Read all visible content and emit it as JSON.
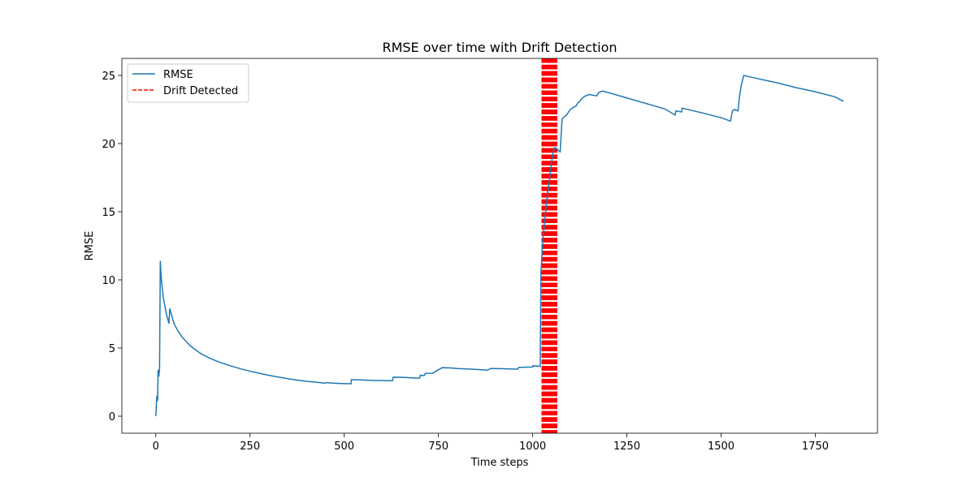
{
  "chart_data": {
    "type": "line",
    "title": "RMSE over time with Drift Detection",
    "xlabel": "Time steps",
    "ylabel": "RMSE",
    "xlim": [
      -90,
      1915
    ],
    "ylim": [
      -1.25,
      26.25
    ],
    "xticks": [
      0,
      250,
      500,
      750,
      1000,
      1250,
      1500,
      1750
    ],
    "yticks": [
      0,
      5,
      10,
      15,
      20,
      25
    ],
    "grid": false,
    "legend_position": "upper-left",
    "legend": [
      {
        "label": "RMSE",
        "color": "#1f77b4",
        "style": "solid"
      },
      {
        "label": "Drift Detected",
        "color": "#ff0000",
        "style": "dashed"
      }
    ],
    "series": [
      {
        "name": "RMSE",
        "color": "#1f77b4",
        "points": [
          [
            0,
            0.0
          ],
          [
            1,
            0.4
          ],
          [
            2,
            1.2
          ],
          [
            3,
            1.5
          ],
          [
            4,
            1.1
          ],
          [
            5,
            1.3
          ],
          [
            6,
            3.4
          ],
          [
            7,
            3.1
          ],
          [
            8,
            2.9
          ],
          [
            9,
            3.2
          ],
          [
            10,
            3.5
          ],
          [
            12,
            11.4
          ],
          [
            14,
            10.3
          ],
          [
            17,
            9.4
          ],
          [
            20,
            8.7
          ],
          [
            24,
            8.1
          ],
          [
            28,
            7.5
          ],
          [
            32,
            7.1
          ],
          [
            35,
            6.8
          ],
          [
            37,
            7.9
          ],
          [
            40,
            7.6
          ],
          [
            45,
            7.1
          ],
          [
            50,
            6.7
          ],
          [
            60,
            6.2
          ],
          [
            70,
            5.8
          ],
          [
            80,
            5.5
          ],
          [
            90,
            5.2
          ],
          [
            100,
            4.98
          ],
          [
            120,
            4.58
          ],
          [
            140,
            4.3
          ],
          [
            160,
            4.06
          ],
          [
            180,
            3.86
          ],
          [
            200,
            3.68
          ],
          [
            225,
            3.48
          ],
          [
            250,
            3.3
          ],
          [
            275,
            3.15
          ],
          [
            300,
            3.0
          ],
          [
            325,
            2.87
          ],
          [
            350,
            2.75
          ],
          [
            375,
            2.65
          ],
          [
            400,
            2.56
          ],
          [
            425,
            2.49
          ],
          [
            450,
            2.42
          ],
          [
            455,
            2.47
          ],
          [
            460,
            2.44
          ],
          [
            480,
            2.41
          ],
          [
            500,
            2.39
          ],
          [
            518,
            2.38
          ],
          [
            519,
            2.68
          ],
          [
            540,
            2.66
          ],
          [
            560,
            2.64
          ],
          [
            580,
            2.62
          ],
          [
            600,
            2.61
          ],
          [
            628,
            2.6
          ],
          [
            630,
            2.86
          ],
          [
            660,
            2.84
          ],
          [
            690,
            2.8
          ],
          [
            700,
            2.79
          ],
          [
            702,
            3.0
          ],
          [
            712,
            2.98
          ],
          [
            715,
            3.14
          ],
          [
            735,
            3.15
          ],
          [
            745,
            3.33
          ],
          [
            760,
            3.56
          ],
          [
            780,
            3.54
          ],
          [
            800,
            3.5
          ],
          [
            830,
            3.46
          ],
          [
            850,
            3.43
          ],
          [
            870,
            3.4
          ],
          [
            880,
            3.37
          ],
          [
            888,
            3.5
          ],
          [
            910,
            3.49
          ],
          [
            940,
            3.47
          ],
          [
            960,
            3.45
          ],
          [
            963,
            3.58
          ],
          [
            990,
            3.6
          ],
          [
            1000,
            3.6
          ],
          [
            1001,
            3.7
          ],
          [
            1020,
            3.65
          ],
          [
            1022,
            10.5
          ],
          [
            1026,
            12.5
          ],
          [
            1030,
            13.8
          ],
          [
            1035,
            15.2
          ],
          [
            1040,
            16.4
          ],
          [
            1045,
            17.5
          ],
          [
            1050,
            18.6
          ],
          [
            1055,
            19.5
          ],
          [
            1058,
            19.7
          ],
          [
            1065,
            19.6
          ],
          [
            1070,
            19.45
          ],
          [
            1073,
            19.4
          ],
          [
            1078,
            21.8
          ],
          [
            1085,
            22.0
          ],
          [
            1090,
            22.1
          ],
          [
            1095,
            22.3
          ],
          [
            1100,
            22.5
          ],
          [
            1105,
            22.6
          ],
          [
            1110,
            22.7
          ],
          [
            1115,
            22.75
          ],
          [
            1120,
            23.0
          ],
          [
            1125,
            23.1
          ],
          [
            1130,
            23.3
          ],
          [
            1135,
            23.4
          ],
          [
            1140,
            23.5
          ],
          [
            1145,
            23.55
          ],
          [
            1150,
            23.6
          ],
          [
            1160,
            23.55
          ],
          [
            1170,
            23.5
          ],
          [
            1175,
            23.75
          ],
          [
            1185,
            23.85
          ],
          [
            1200,
            23.75
          ],
          [
            1250,
            23.35
          ],
          [
            1300,
            22.95
          ],
          [
            1350,
            22.55
          ],
          [
            1378,
            22.1
          ],
          [
            1380,
            22.4
          ],
          [
            1395,
            22.32
          ],
          [
            1397,
            22.6
          ],
          [
            1450,
            22.25
          ],
          [
            1500,
            21.9
          ],
          [
            1525,
            21.65
          ],
          [
            1530,
            22.4
          ],
          [
            1535,
            22.5
          ],
          [
            1545,
            22.4
          ],
          [
            1548,
            23.3
          ],
          [
            1553,
            24.2
          ],
          [
            1560,
            25.0
          ],
          [
            1600,
            24.75
          ],
          [
            1650,
            24.45
          ],
          [
            1700,
            24.1
          ],
          [
            1750,
            23.8
          ],
          [
            1800,
            23.45
          ],
          [
            1825,
            23.1
          ]
        ]
      }
    ],
    "drift_detections": [
      1025,
      1026,
      1027,
      1028,
      1029,
      1030,
      1031,
      1032,
      1033,
      1034,
      1035,
      1036,
      1037,
      1038,
      1039,
      1040,
      1041,
      1042,
      1043,
      1044,
      1045,
      1046,
      1047,
      1048,
      1049,
      1050,
      1051,
      1052,
      1053,
      1054,
      1055,
      1056,
      1057,
      1058,
      1059,
      1060,
      1061,
      1062,
      1063,
      1064
    ]
  }
}
